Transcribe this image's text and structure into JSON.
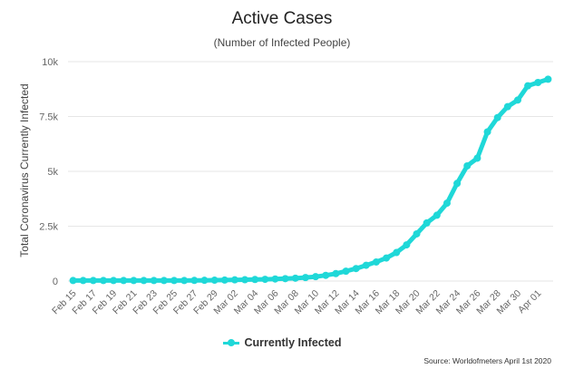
{
  "chart_data": {
    "type": "line",
    "title": "Active Cases",
    "subtitle": "(Number of Infected People)",
    "ylabel": "Total Coronavirus Currently Infected",
    "xlabel": "",
    "ylim": [
      0,
      10000
    ],
    "yticks": [
      0,
      2500,
      5000,
      7500,
      10000
    ],
    "ytick_labels": [
      "0",
      "2.5k",
      "5k",
      "7.5k",
      "10k"
    ],
    "grid": true,
    "legend": "bottom-center",
    "source": "Source: Worldofmeters April 1st 2020",
    "categories": [
      "Feb 15",
      "Feb 16",
      "Feb 17",
      "Feb 18",
      "Feb 19",
      "Feb 20",
      "Feb 21",
      "Feb 22",
      "Feb 23",
      "Feb 24",
      "Feb 25",
      "Feb 26",
      "Feb 27",
      "Feb 28",
      "Feb 29",
      "Mar 01",
      "Mar 02",
      "Mar 03",
      "Mar 04",
      "Mar 05",
      "Mar 06",
      "Mar 07",
      "Mar 08",
      "Mar 09",
      "Mar 10",
      "Mar 11",
      "Mar 12",
      "Mar 13",
      "Mar 14",
      "Mar 15",
      "Mar 16",
      "Mar 17",
      "Mar 18",
      "Mar 19",
      "Mar 20",
      "Mar 21",
      "Mar 22",
      "Mar 23",
      "Mar 24",
      "Mar 25",
      "Mar 26",
      "Mar 27",
      "Mar 28",
      "Mar 29",
      "Mar 30",
      "Mar 31",
      "Apr 01",
      "Apr 02"
    ],
    "tick_labels": [
      "Feb 15",
      "Feb 17",
      "Feb 19",
      "Feb 21",
      "Feb 23",
      "Feb 25",
      "Feb 27",
      "Feb 29",
      "Mar 02",
      "Mar 04",
      "Mar 06",
      "Mar 08",
      "Mar 10",
      "Mar 12",
      "Mar 14",
      "Mar 16",
      "Mar 18",
      "Mar 20",
      "Mar 22",
      "Mar 24",
      "Mar 26",
      "Mar 28",
      "Mar 30",
      "Apr 01"
    ],
    "series": [
      {
        "name": "Currently Infected",
        "color": "#1fd8d8",
        "values": [
          25,
          25,
          25,
          25,
          25,
          25,
          25,
          25,
          25,
          25,
          25,
          25,
          30,
          35,
          40,
          45,
          55,
          60,
          70,
          80,
          95,
          110,
          130,
          160,
          200,
          260,
          340,
          450,
          570,
          720,
          870,
          1050,
          1300,
          1650,
          2150,
          2650,
          3000,
          3550,
          4450,
          5250,
          5600,
          6800,
          7450,
          7950,
          8250,
          8900,
          9050,
          9200
        ]
      }
    ]
  }
}
